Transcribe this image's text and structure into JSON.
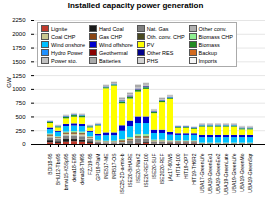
{
  "chart_data": {
    "type": "bar",
    "stacked": true,
    "title": "Installed capacity power generation",
    "ylabel": "GW",
    "ylim": [
      0,
      2250
    ],
    "yticks": [
      0,
      250,
      500,
      750,
      1000,
      1250,
      1500,
      1750,
      2000,
      2250
    ],
    "grid": true,
    "legend": "upper left",
    "categories": [
      "BDI18-95",
      "BHU12-Tbs95",
      "bmwi15-K5Sp95",
      "dena18-El95",
      "dena18-TM95",
      "FZJ19-95",
      "GPI19-PlaM",
      "INE517-ME",
      "INR517-OS",
      "ISC25-2D-a-mix-b",
      "ISE20-BiHARE",
      "ISE20-INaK2",
      "ISE20-REF100",
      "ISE20-SUF",
      "ISE2020-REF",
      "jAc17-60W5",
      "HIT14-100",
      "HIT19-OPT",
      "HIT19-TH6R2",
      "UBA17-GreenLife",
      "UBA19-GreenEe1",
      "UBA19-GreenEe2",
      "UBA19-GreenLate",
      "UBA19-GreenLife",
      "UBA19-GreenMo",
      "UBA19-GreenSqr"
    ],
    "series": [
      {
        "name": "Lignite",
        "color": "#c0392b",
        "values": [
          30,
          20,
          40,
          50,
          40,
          20,
          10,
          5,
          5,
          0,
          0,
          10,
          20,
          5,
          5,
          10,
          10,
          10,
          10,
          0,
          0,
          0,
          0,
          0,
          0,
          0
        ]
      },
      {
        "name": "Hard Coal",
        "color": "#1a1a1a",
        "values": [
          40,
          30,
          50,
          40,
          40,
          30,
          15,
          5,
          5,
          0,
          5,
          10,
          15,
          5,
          5,
          10,
          5,
          5,
          5,
          0,
          0,
          0,
          0,
          0,
          0,
          0
        ]
      },
      {
        "name": "Nat. Gas",
        "color": "#808080",
        "values": [
          50,
          40,
          60,
          60,
          60,
          40,
          20,
          20,
          20,
          30,
          50,
          80,
          60,
          30,
          30,
          20,
          20,
          20,
          20,
          10,
          10,
          10,
          10,
          10,
          10,
          10
        ]
      },
      {
        "name": "Other conv.",
        "color": "#b0b0b0",
        "values": [
          10,
          10,
          15,
          15,
          15,
          10,
          5,
          5,
          5,
          10,
          10,
          10,
          10,
          5,
          5,
          5,
          5,
          5,
          5,
          0,
          0,
          0,
          0,
          0,
          0,
          0
        ]
      },
      {
        "name": "Coal CHP",
        "color": "#c8c890",
        "values": [
          20,
          15,
          20,
          20,
          20,
          15,
          5,
          5,
          5,
          0,
          0,
          5,
          10,
          5,
          5,
          5,
          5,
          5,
          5,
          0,
          0,
          0,
          0,
          0,
          0,
          0
        ]
      },
      {
        "name": "Gas CHP",
        "color": "#8B4513",
        "values": [
          15,
          10,
          15,
          20,
          20,
          10,
          5,
          5,
          5,
          20,
          20,
          20,
          20,
          10,
          10,
          5,
          5,
          5,
          5,
          5,
          5,
          5,
          5,
          5,
          5,
          5
        ]
      },
      {
        "name": "Oth. conv. CHP",
        "color": "#4a4a20",
        "values": [
          10,
          5,
          10,
          10,
          10,
          5,
          5,
          5,
          5,
          10,
          10,
          15,
          15,
          5,
          5,
          5,
          5,
          5,
          5,
          0,
          0,
          0,
          0,
          0,
          0,
          0
        ]
      },
      {
        "name": "Biomass CHP",
        "color": "#90ee90",
        "values": [
          15,
          10,
          15,
          20,
          20,
          10,
          10,
          10,
          10,
          20,
          30,
          30,
          30,
          15,
          15,
          10,
          10,
          10,
          10,
          10,
          10,
          10,
          10,
          10,
          10,
          10
        ]
      },
      {
        "name": "Wind onshore",
        "color": "#00bfff",
        "values": [
          80,
          80,
          100,
          100,
          100,
          80,
          80,
          100,
          100,
          150,
          200,
          200,
          200,
          120,
          120,
          100,
          100,
          100,
          100,
          100,
          100,
          100,
          100,
          100,
          100,
          100
        ]
      },
      {
        "name": "Wind offshore",
        "color": "#0000cd",
        "values": [
          30,
          20,
          40,
          40,
          40,
          20,
          30,
          50,
          50,
          100,
          100,
          120,
          120,
          60,
          60,
          50,
          30,
          30,
          30,
          40,
          40,
          40,
          40,
          40,
          40,
          40
        ]
      },
      {
        "name": "PV",
        "color": "#ffff00",
        "values": [
          80,
          60,
          100,
          120,
          120,
          60,
          150,
          800,
          850,
          400,
          400,
          450,
          500,
          300,
          500,
          600,
          100,
          100,
          80,
          150,
          150,
          150,
          150,
          150,
          100,
          100
        ]
      },
      {
        "name": "Biomass",
        "color": "#228b22",
        "values": [
          20,
          20,
          30,
          30,
          30,
          20,
          15,
          20,
          20,
          30,
          30,
          30,
          30,
          20,
          20,
          20,
          15,
          15,
          15,
          20,
          20,
          20,
          20,
          20,
          20,
          20
        ]
      },
      {
        "name": "Hydro Power",
        "color": "#1e90ff",
        "values": [
          10,
          10,
          10,
          10,
          10,
          10,
          10,
          10,
          10,
          10,
          10,
          10,
          10,
          10,
          10,
          10,
          10,
          10,
          10,
          10,
          10,
          10,
          10,
          10,
          10,
          10
        ]
      },
      {
        "name": "Geothermal",
        "color": "#8b0000",
        "values": [
          0,
          0,
          0,
          0,
          0,
          0,
          0,
          0,
          0,
          2,
          5,
          5,
          5,
          2,
          2,
          0,
          0,
          0,
          0,
          0,
          0,
          0,
          0,
          0,
          0,
          0
        ]
      },
      {
        "name": "Other RES",
        "color": "#00008b",
        "values": [
          5,
          5,
          5,
          5,
          5,
          5,
          5,
          5,
          5,
          10,
          10,
          10,
          10,
          5,
          5,
          5,
          5,
          5,
          5,
          5,
          5,
          5,
          5,
          5,
          5,
          5
        ]
      },
      {
        "name": "Backup",
        "color": "#d2691e",
        "values": [
          0,
          0,
          0,
          0,
          0,
          0,
          0,
          0,
          0,
          0,
          0,
          0,
          0,
          0,
          0,
          0,
          0,
          0,
          0,
          0,
          0,
          0,
          0,
          0,
          0,
          0
        ]
      },
      {
        "name": "Power sto.",
        "color": "#c0c0c0",
        "values": [
          5,
          5,
          10,
          10,
          10,
          5,
          5,
          10,
          10,
          20,
          20,
          20,
          20,
          10,
          10,
          10,
          5,
          5,
          5,
          10,
          10,
          10,
          10,
          10,
          10,
          10
        ]
      },
      {
        "name": "Batteries",
        "color": "#a9a9a9",
        "values": [
          0,
          0,
          5,
          5,
          5,
          0,
          5,
          15,
          20,
          30,
          30,
          50,
          30,
          20,
          30,
          20,
          0,
          0,
          0,
          10,
          10,
          10,
          10,
          10,
          10,
          10
        ]
      },
      {
        "name": "PHS",
        "color": "#d3d3d3",
        "values": [
          10,
          10,
          10,
          10,
          10,
          10,
          10,
          10,
          10,
          10,
          10,
          10,
          10,
          10,
          10,
          10,
          10,
          10,
          10,
          10,
          10,
          10,
          10,
          10,
          10,
          10
        ]
      },
      {
        "name": "Imports",
        "color": "#f5f5f5",
        "values": [
          0,
          0,
          0,
          0,
          0,
          0,
          0,
          0,
          0,
          0,
          0,
          0,
          0,
          0,
          0,
          0,
          0,
          0,
          0,
          0,
          0,
          0,
          0,
          0,
          0,
          0
        ]
      }
    ]
  }
}
